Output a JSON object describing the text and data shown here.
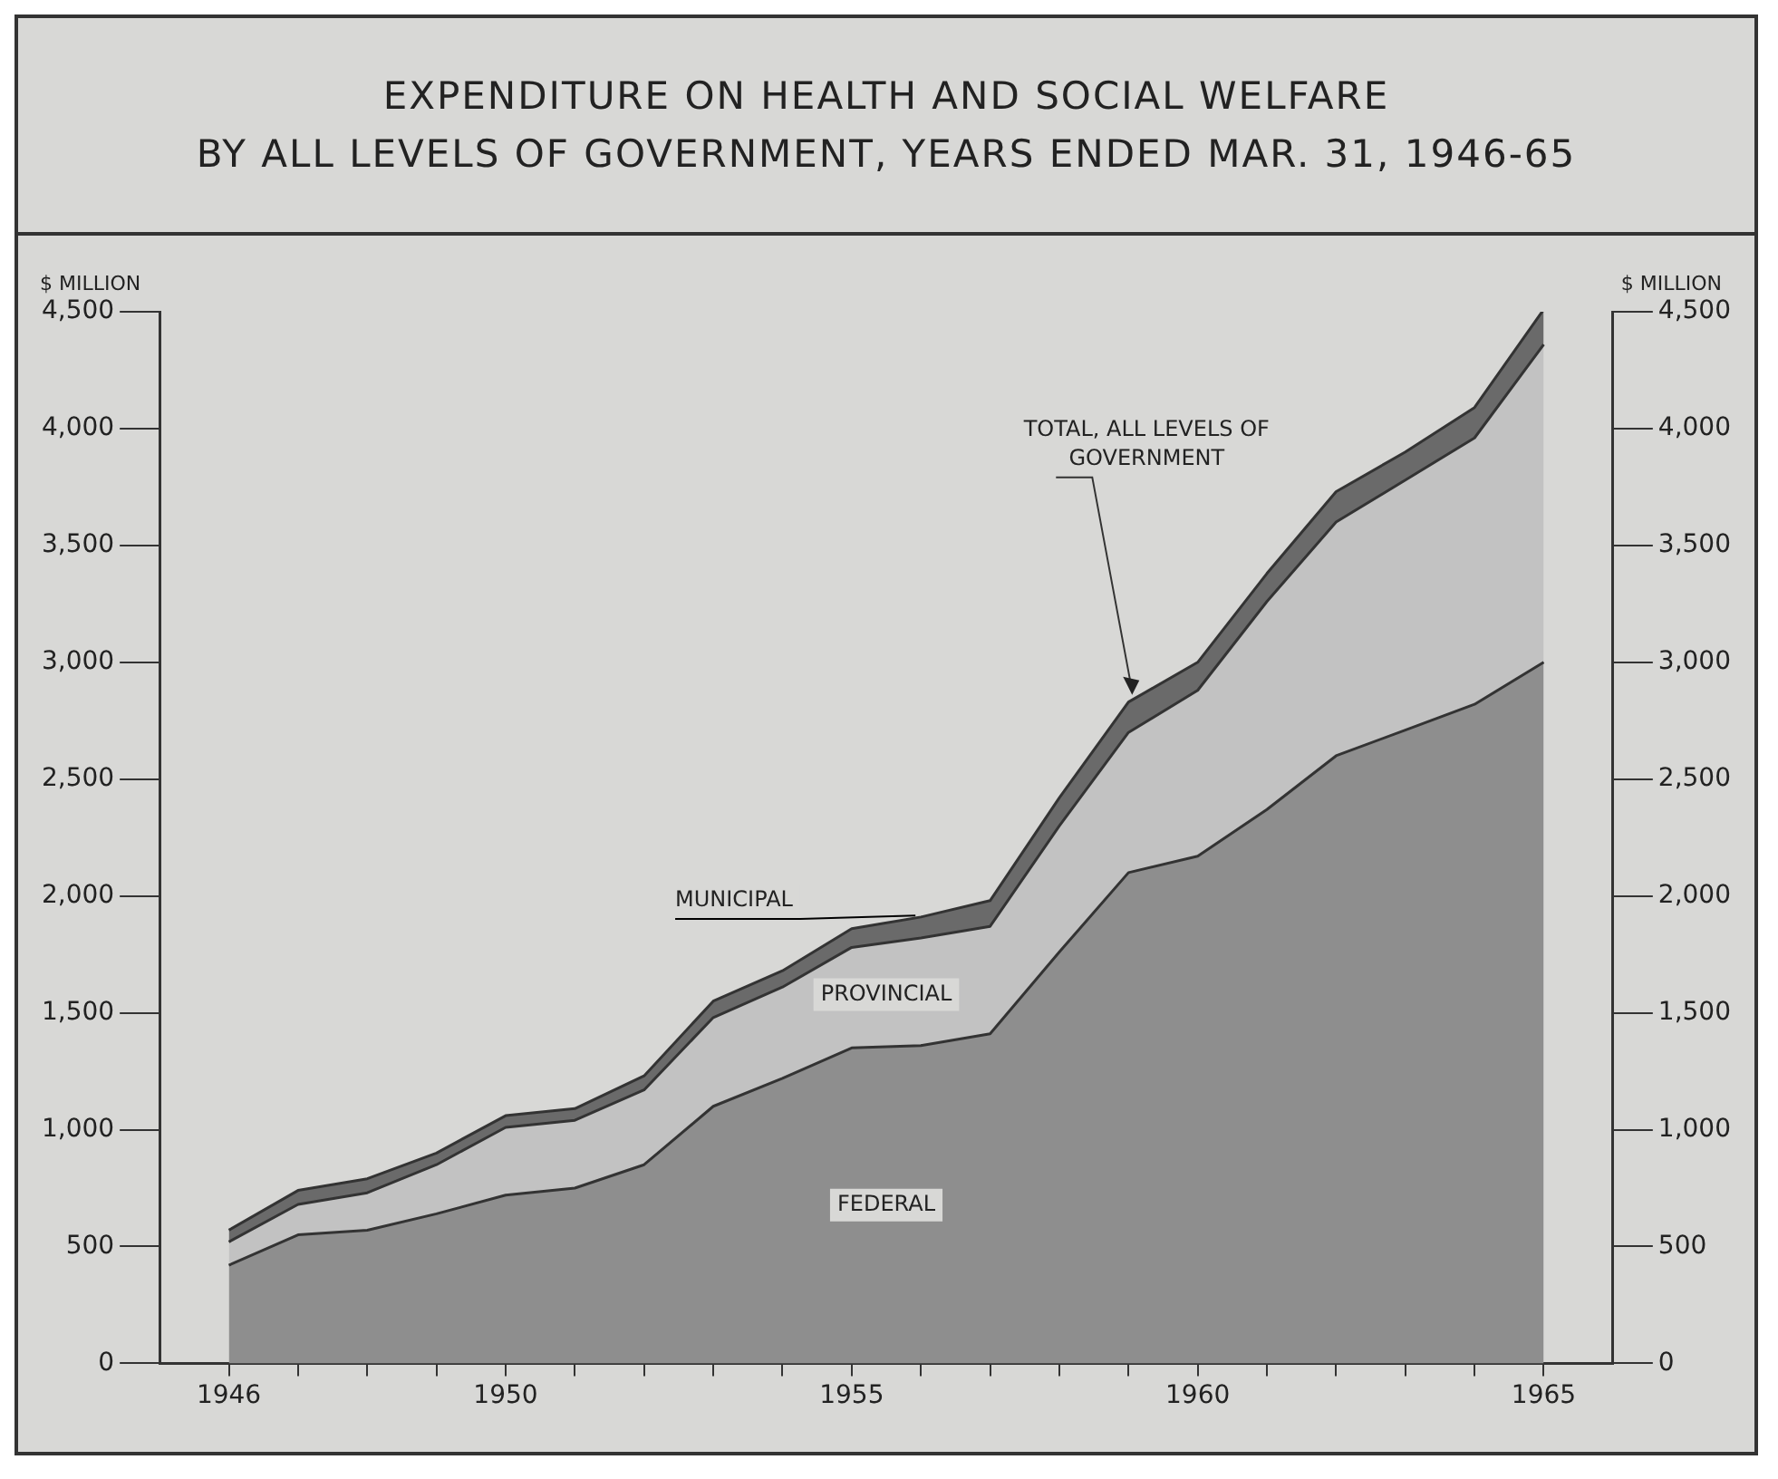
{
  "chart_data": {
    "type": "area",
    "stacked": true,
    "title": "EXPENDITURE ON HEALTH AND SOCIAL WELFARE\nBY ALL LEVELS OF GOVERNMENT, YEARS ENDED MAR. 31, 1946-65",
    "ylabel": "$ MILLION",
    "y2label": "$ MILLION",
    "x": [
      1946,
      1947,
      1948,
      1949,
      1950,
      1951,
      1952,
      1953,
      1954,
      1955,
      1956,
      1957,
      1958,
      1959,
      1960,
      1961,
      1962,
      1963,
      1964,
      1965
    ],
    "series": [
      {
        "name": "FEDERAL",
        "color": "#8e8e8e",
        "values": [
          420,
          550,
          570,
          640,
          720,
          750,
          850,
          1100,
          1220,
          1350,
          1360,
          1410,
          1760,
          2100,
          2170,
          2370,
          2600,
          2710,
          2820,
          3000
        ]
      },
      {
        "name": "PROVINCIAL",
        "color": "#c2c2c2",
        "values": [
          100,
          130,
          160,
          210,
          290,
          290,
          320,
          380,
          390,
          430,
          460,
          460,
          540,
          600,
          710,
          890,
          1000,
          1070,
          1140,
          1360
        ]
      },
      {
        "name": "MUNICIPAL",
        "color": "#6a6a6a",
        "values": [
          50,
          60,
          60,
          50,
          50,
          50,
          60,
          70,
          70,
          80,
          90,
          110,
          120,
          130,
          120,
          120,
          130,
          120,
          130,
          150
        ]
      }
    ],
    "xlim": [
      1945,
      1966
    ],
    "xticks": [
      1946,
      {
        "value": 1947,
        "label": null
      },
      {
        "value": 1948,
        "label": null
      },
      {
        "value": 1949,
        "label": null
      },
      1950,
      {
        "value": 1951,
        "label": null
      },
      {
        "value": 1952,
        "label": null
      },
      {
        "value": 1953,
        "label": null
      },
      {
        "value": 1954,
        "label": null
      },
      1955,
      {
        "value": 1956,
        "label": null
      },
      {
        "value": 1957,
        "label": null
      },
      {
        "value": 1958,
        "label": null
      },
      {
        "value": 1959,
        "label": null
      },
      1960,
      {
        "value": 1961,
        "label": null
      },
      {
        "value": 1962,
        "label": null
      },
      {
        "value": 1963,
        "label": null
      },
      {
        "value": 1964,
        "label": null
      },
      1965
    ],
    "ylim": [
      0,
      4500
    ],
    "yticks": [
      0,
      500,
      {
        "value": 1000,
        "label": "1,000"
      },
      {
        "value": 1500,
        "label": "1,500"
      },
      {
        "value": 2000,
        "label": "2,000"
      },
      {
        "value": 2500,
        "label": "2,500"
      },
      {
        "value": 3000,
        "label": "3,000"
      },
      {
        "value": 3500,
        "label": "3,500"
      },
      {
        "value": 4000,
        "label": "4,000"
      },
      {
        "value": 4500,
        "label": "4,500"
      }
    ],
    "y2lim": [
      0,
      4500
    ],
    "y2ticks": [
      0,
      500,
      {
        "value": 1000,
        "label": "1,000"
      },
      {
        "value": 1500,
        "label": "1,500"
      },
      {
        "value": 2000,
        "label": "2,000"
      },
      {
        "value": 2500,
        "label": "2,500"
      },
      {
        "value": 3000,
        "label": "3,000"
      },
      {
        "value": 3500,
        "label": "3,500"
      },
      {
        "value": 4000,
        "label": "4,000"
      },
      {
        "value": 4500,
        "label": "4,500"
      }
    ],
    "annotations": [
      {
        "text": "TOTAL, ALL LEVELS OF GOVERNMENT",
        "x": 1959,
        "y": 2830
      }
    ],
    "grid": false,
    "legend": false
  }
}
